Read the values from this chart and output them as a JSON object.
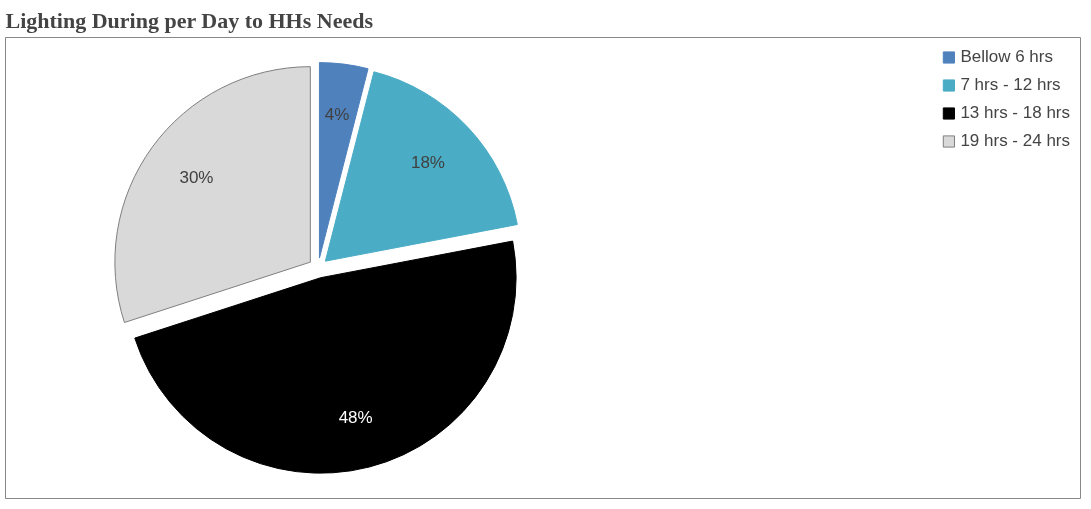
{
  "chart_data": {
    "type": "pie",
    "title": "Lighting During per Day to HHs Needs",
    "categories": [
      "Bellow 6 hrs",
      "7 hrs - 12 hrs",
      "13 hrs - 18 hrs",
      "19 hrs - 24 hrs"
    ],
    "values": [
      4,
      18,
      48,
      30
    ],
    "colors": [
      "#4f81bd",
      "#4bacc6",
      "#000000",
      "#d9d9d9"
    ],
    "value_labels": [
      "4%",
      "18%",
      "48%",
      "30%"
    ],
    "legend": "right"
  }
}
